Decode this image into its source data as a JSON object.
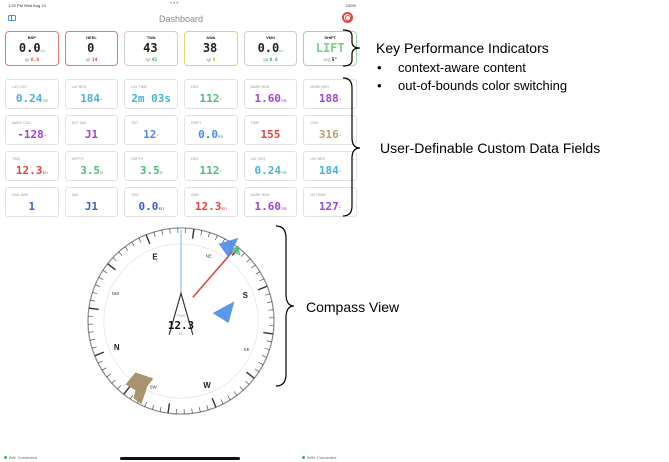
{
  "status_bar": {
    "time": "1:29 PM  Wed Aug 13",
    "dots": "•••",
    "battery": "100%"
  },
  "nav": {
    "title": "Dashboard",
    "sidebar_icon": "sidebar-icon",
    "emergency_icon": "lifebuoy-icon"
  },
  "kpis": [
    {
      "label": "BSP",
      "value": "0.0",
      "unit": "kn",
      "target_label": "tgt",
      "target": "6.8",
      "border": "#e07b7b",
      "value_color": "#222222",
      "target_color": "#e0453c"
    },
    {
      "label": "HEEL",
      "value": "0",
      "unit": "°",
      "target_label": "tgt",
      "target": "14",
      "border": "#e07b7b",
      "value_color": "#222222",
      "target_color": "#e0453c"
    },
    {
      "label": "TWA",
      "value": "43",
      "unit": "°",
      "target_label": "tgt",
      "target": "42",
      "border": "#cfcfcf",
      "value_color": "#222222",
      "target_color": "#3bb54a"
    },
    {
      "label": "AWA",
      "value": "38",
      "unit": "°",
      "target_label": "tgt",
      "target": "9",
      "border": "#e8d070",
      "value_color": "#222222",
      "target_color": "#d9b91a"
    },
    {
      "label": "VMG",
      "value": "0.0",
      "unit": "kn",
      "target_label": "tgt",
      "target": "0.0",
      "border": "#cfcfcf",
      "value_color": "#222222",
      "target_color": "#3bb54a"
    },
    {
      "label": "SHIFT",
      "value": "LIFT",
      "unit": "",
      "target_label": "avg",
      "target": "5°",
      "border": "#9fd8a6",
      "value_color": "#7fcf8b",
      "target_color": "#222222"
    }
  ],
  "fields": [
    {
      "label": "LAY DIST",
      "value": "0.24",
      "unit": "nm",
      "color": "#4ab3d4"
    },
    {
      "label": "LAY BRG",
      "value": "184",
      "unit": "°",
      "color": "#4ab3d4"
    },
    {
      "label": "LAY TIME",
      "value": "2m 03s",
      "unit": "",
      "color": "#4ab3d4"
    },
    {
      "label": "HDG",
      "value": "112",
      "unit": "°",
      "color": "#4dbf7a"
    },
    {
      "label": "MARK RNG",
      "value": "1.60",
      "unit": "nm",
      "color": "#a045d6"
    },
    {
      "label": "MARK BRG",
      "value": "188",
      "unit": "°",
      "color": "#a045d6"
    },
    {
      "label": "MARK COG",
      "value": "-128",
      "unit": "°",
      "color": "#a045d6"
    },
    {
      "label": "NXT SAIL",
      "value": "J1",
      "unit": "",
      "color": "#a045d6"
    },
    {
      "label": "SET",
      "value": "12",
      "unit": "°",
      "color": "#4a8ae8"
    },
    {
      "label": "DRIFT",
      "value": "0.0",
      "unit": "kn",
      "color": "#4a8ae8"
    },
    {
      "label": "TIME",
      "value": "155",
      "unit": "",
      "color": "#e0453c"
    },
    {
      "label": "COG",
      "value": "316",
      "unit": "°",
      "color": "#b8a06a"
    },
    {
      "label": "TWS",
      "value": "12.3",
      "unit": "kn",
      "color": "#e0453c"
    },
    {
      "label": "DEPTH",
      "value": "3.5",
      "unit": "m",
      "color": "#4dbf7a"
    },
    {
      "label": "DEPTH",
      "value": "3.5",
      "unit": "m",
      "color": "#4dbf7a"
    },
    {
      "label": "HDG",
      "value": "112",
      "unit": "°",
      "color": "#4dbf7a"
    },
    {
      "label": "LAY DIST",
      "value": "0.24",
      "unit": "nm",
      "color": "#4ab3d4"
    },
    {
      "label": "LAY BRG",
      "value": "184",
      "unit": "°",
      "color": "#4ab3d4"
    },
    {
      "label": "SAIL AWK",
      "value": "1",
      "unit": "",
      "color": "#3a5fc8"
    },
    {
      "label": "SAIL",
      "value": "J1",
      "unit": "",
      "color": "#3a5fc8"
    },
    {
      "label": "SOG",
      "value": "0.0",
      "unit": "kn",
      "color": "#3a5fc8"
    },
    {
      "label": "AWS",
      "value": "12.3",
      "unit": "kn",
      "color": "#e0453c"
    },
    {
      "label": "MARK RNG",
      "value": "1.60",
      "unit": "nm",
      "color": "#a045d6"
    },
    {
      "label": "NXT BRG",
      "value": "127",
      "unit": "°",
      "color": "#a045d6"
    }
  ],
  "compass": {
    "heading_deg": 112,
    "center_label": "TWS",
    "center_value": "12.3",
    "center_unit": "kn",
    "cardinals": [
      "N",
      "E",
      "S",
      "W"
    ],
    "small_labels": [
      "NW",
      "NE",
      "SE",
      "SW"
    ],
    "wind_color": "#4a8ae8",
    "laylines_color": "#4dbf7a",
    "mark_color": "#e0453c",
    "current_color": "#a08860"
  },
  "bottom_bar": {
    "left_status": "BW: Connected",
    "right_status": "WIN: Connected"
  },
  "annotations": {
    "kpi_title": "Key Performance Indicators",
    "kpi_bullets": [
      "context-aware content",
      "out-of-bounds color switching"
    ],
    "fields_title": "User-Definable Custom Data Fields",
    "compass_title": "Compass View",
    "bullet_char": "•"
  }
}
